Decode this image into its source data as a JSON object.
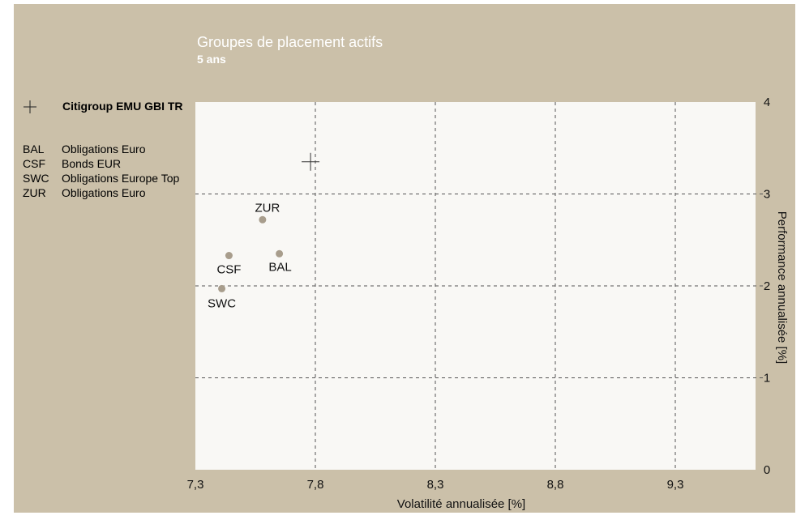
{
  "header": {
    "title": "Groupes de placement actifs",
    "subtitle": "5 ans"
  },
  "benchmark": {
    "icon": "cross-marker-icon",
    "label": "Citigroup EMU GBI TR"
  },
  "legend": [
    {
      "code": "BAL",
      "name": "Obligations Euro"
    },
    {
      "code": "CSF",
      "name": "Bonds EUR"
    },
    {
      "code": "SWC",
      "name": "Obligations Europe Top"
    },
    {
      "code": "ZUR",
      "name": "Obligations Euro"
    }
  ],
  "colors": {
    "background": "#cbc0a9",
    "plot_area": "#f9f8f5",
    "point": "#a89d8c",
    "grid": "#555555"
  },
  "chart_data": {
    "type": "scatter",
    "xlabel": "Volatilité annualisée [%]",
    "ylabel": "Performance annualisée [%]",
    "xlim": [
      7.3,
      9.3
    ],
    "ylim": [
      0,
      4
    ],
    "x_ticks": [
      "7,3",
      "7,8",
      "8,3",
      "8,8",
      "9,3"
    ],
    "y_ticks": [
      "0",
      "1",
      "2",
      "3",
      "4"
    ],
    "x_tick_values": [
      7.3,
      7.8,
      8.3,
      8.8,
      9.3
    ],
    "y_tick_values": [
      0,
      1,
      2,
      3,
      4
    ],
    "grid": true,
    "legend_position": "left",
    "benchmark_point": {
      "name": "Citigroup EMU GBI TR",
      "x": 7.78,
      "y": 3.35
    },
    "points": [
      {
        "label": "ZUR",
        "x": 7.58,
        "y": 2.72
      },
      {
        "label": "CSF",
        "x": 7.44,
        "y": 2.33
      },
      {
        "label": "BAL",
        "x": 7.65,
        "y": 2.35
      },
      {
        "label": "SWC",
        "x": 7.41,
        "y": 1.97
      }
    ]
  }
}
